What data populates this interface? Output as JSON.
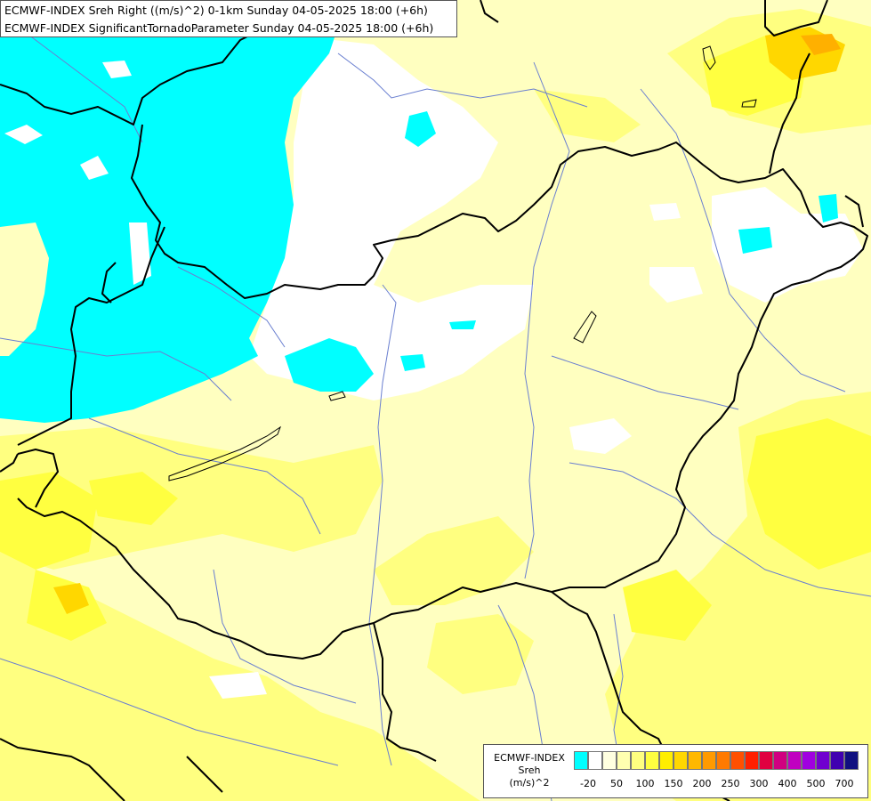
{
  "title": {
    "line1": "ECMWF-INDEX Sreh Right ((m/s)^2) 0-1km Sunday 04-05-2025 18:00 (+6h)",
    "line2": "ECMWF-INDEX SignificantTornadoParameter Sunday 04-05-2025 18:00 (+6h)"
  },
  "legend": {
    "title_line1": "ECMWF-INDEX",
    "title_line2": "Sreh",
    "title_line3": "(m/s)^2",
    "colors": [
      "#00ffff",
      "#ffffff",
      "#ffffe0",
      "#ffffb0",
      "#ffff80",
      "#ffff40",
      "#ffee00",
      "#ffd700",
      "#ffb800",
      "#ff9a00",
      "#ff7a00",
      "#ff5000",
      "#ff2000",
      "#e00040",
      "#d00080",
      "#c000c0",
      "#a000e0",
      "#7000d0",
      "#4000b0",
      "#101080"
    ],
    "ticks": [
      "-20",
      "50",
      "100",
      "150",
      "200",
      "250",
      "300",
      "400",
      "500",
      "700"
    ]
  },
  "map_colors": {
    "background": "#ffffc0",
    "cyan": "#00ffff",
    "white": "#ffffff",
    "yellow": "#ffff80",
    "bright_yellow": "#ffff40",
    "orange": "#ffd700",
    "dark_orange": "#ffb000",
    "border": "#000000",
    "river": "#6a7fd0"
  }
}
